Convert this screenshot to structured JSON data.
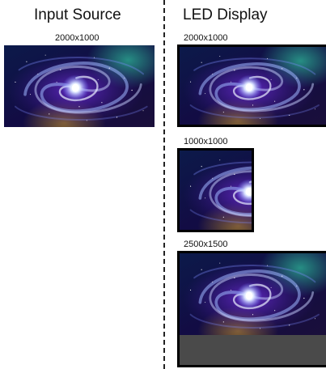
{
  "input_panel": {
    "heading": "Input Source",
    "resolution": "2000x1000"
  },
  "led_panel": {
    "heading": "LED Display",
    "outputs": [
      {
        "resolution": "2000x1000",
        "mode": "full"
      },
      {
        "resolution": "1000x1000",
        "mode": "cropped"
      },
      {
        "resolution": "2500x1500",
        "mode": "letterboxed"
      }
    ]
  },
  "colors": {
    "space_dark": "#0b0a3a",
    "nebula_teal": "#1f8a7a",
    "core_white": "#ffffff",
    "unused_area": "#4a4a4a",
    "frame": "#000000"
  }
}
